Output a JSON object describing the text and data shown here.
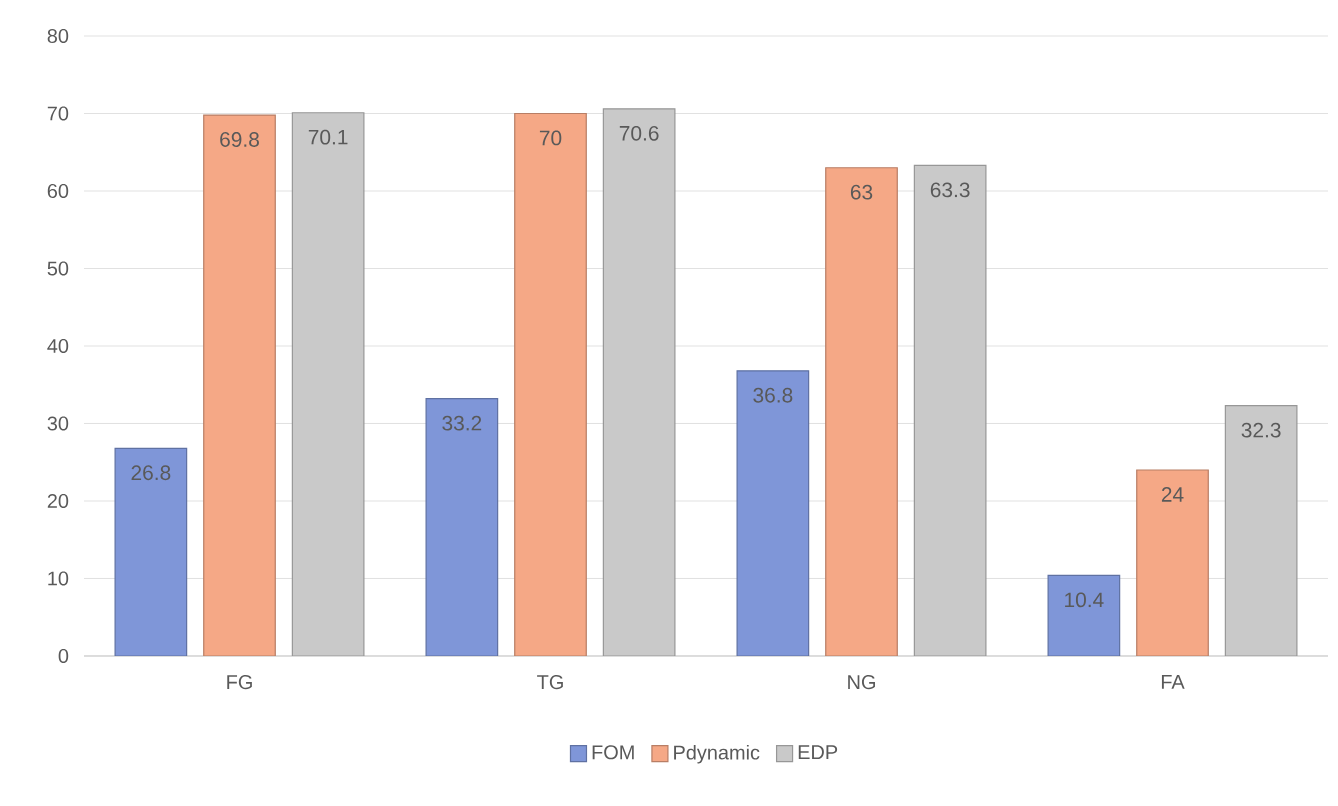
{
  "chart_data": {
    "type": "bar",
    "categories": [
      "FG",
      "TG",
      "NG",
      "FA"
    ],
    "series": [
      {
        "name": "FOM",
        "color": "#7f96d8",
        "values": [
          26.8,
          33.2,
          36.8,
          10.4
        ]
      },
      {
        "name": "Pdynamic",
        "color": "#f5a886",
        "values": [
          69.8,
          70,
          63,
          24
        ]
      },
      {
        "name": "EDP",
        "color": "#c9c9c9",
        "values": [
          70.1,
          70.6,
          63.3,
          32.3
        ]
      }
    ],
    "ylim": [
      0,
      80
    ],
    "yticks": [
      0,
      10,
      20,
      30,
      40,
      50,
      60,
      70,
      80
    ],
    "grid": "y",
    "legend": "bottom",
    "data_labels": true
  }
}
